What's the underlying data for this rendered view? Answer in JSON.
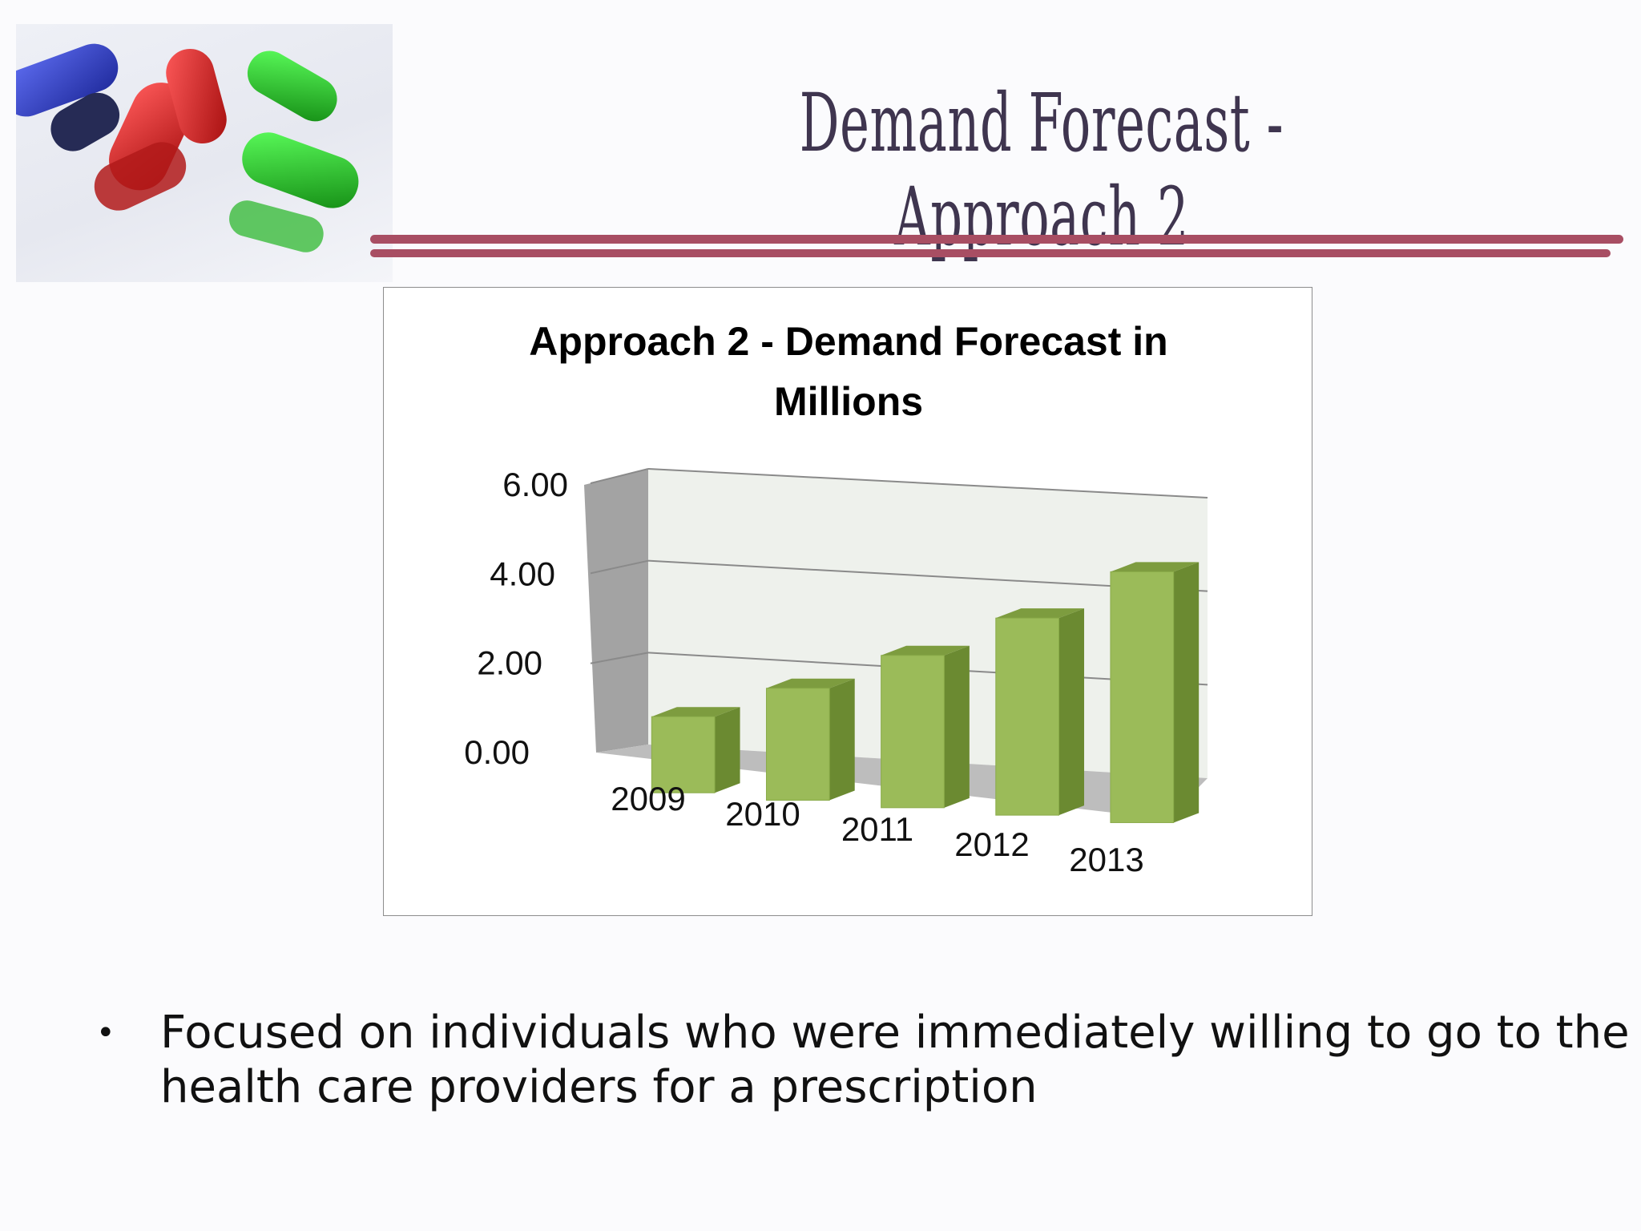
{
  "slide": {
    "title": "Demand Forecast - Approach 2",
    "bullet_symbol": "•",
    "bullet_text": "Focused on individuals who were  immediately willing to go to the health care providers for a prescription"
  },
  "image": {
    "subject": "pills-photo"
  },
  "colors": {
    "title": "#3f354f",
    "rule": "#a84e63",
    "bar_front": "#9bbb59",
    "bar_side": "#6b8a31",
    "bar_top": "#7d9c3f",
    "back_wall": "#eef1ec",
    "side_wall": "#a3a3a3",
    "floor": "#bdbdbd"
  },
  "chart_data": {
    "type": "bar",
    "style": "3d-column",
    "title": "Approach 2 - Demand Forecast in Millions",
    "title_lines": [
      "Approach 2 - Demand Forecast in",
      "Millions"
    ],
    "categories": [
      "2009",
      "2010",
      "2011",
      "2012",
      "2013"
    ],
    "values": [
      1.7,
      2.5,
      3.4,
      4.4,
      5.6
    ],
    "ylim": [
      0,
      6
    ],
    "yticks": [
      0,
      2,
      4,
      6
    ],
    "ytick_labels": [
      "0.00",
      "2.00",
      "4.00",
      "6.00"
    ],
    "xlabel": "",
    "ylabel": "",
    "grid": true,
    "legend": "none"
  }
}
